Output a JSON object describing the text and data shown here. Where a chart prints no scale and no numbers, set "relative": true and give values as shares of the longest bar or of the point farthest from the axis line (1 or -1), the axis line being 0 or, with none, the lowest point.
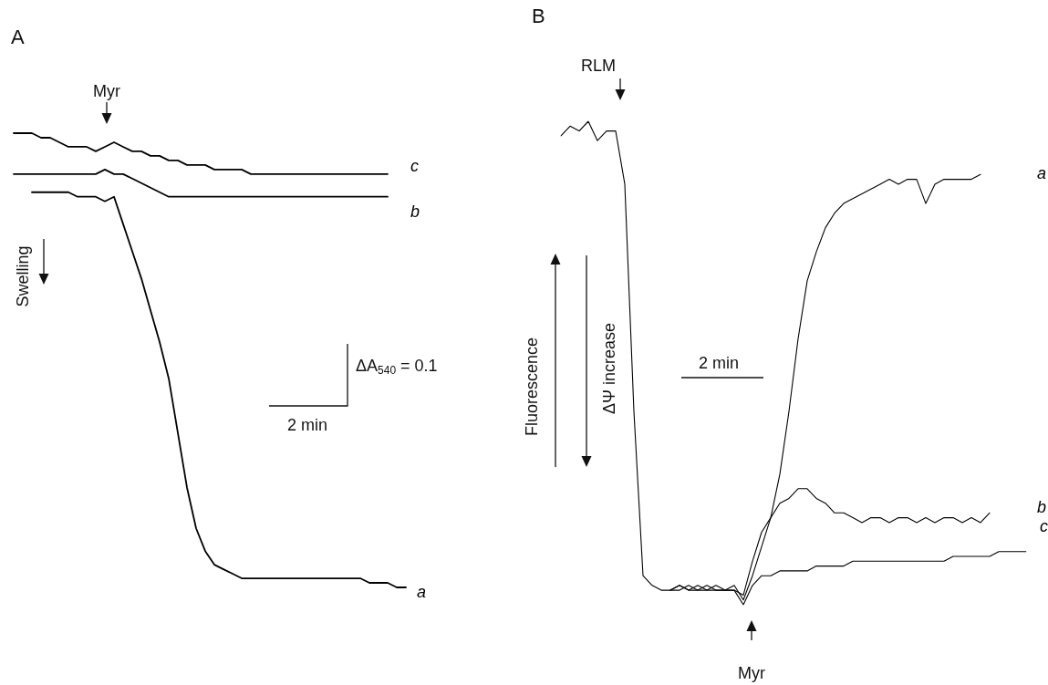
{
  "chart_data": [
    {
      "type": "line",
      "title": "A",
      "relative": true,
      "categories": [
        null,
        null,
        null,
        null,
        null,
        null,
        null,
        null,
        null,
        null,
        null,
        null,
        null,
        null,
        null,
        null,
        null,
        null,
        null,
        null,
        null,
        null,
        null,
        null,
        null,
        null,
        null,
        null,
        null,
        null,
        null,
        null,
        null,
        null,
        null,
        null,
        null,
        null,
        null,
        null,
        null,
        null,
        null,
        null
      ],
      "series": [
        {
          "name": "a",
          "color": "#000000",
          "values": [
            null,
            null,
            0.87,
            0.87,
            0.87,
            0.87,
            0.87,
            0.86,
            0.86,
            0.86,
            0.85,
            0.86,
            0.8,
            0.74,
            0.68,
            0.61,
            0.54,
            0.46,
            0.34,
            0.22,
            0.13,
            0.08,
            0.05,
            0.04,
            0.03,
            0.02,
            0.02,
            0.02,
            0.02,
            0.02,
            0.02,
            0.02,
            0.02,
            0.02,
            0.02,
            0.02,
            0.02,
            0.02,
            0.02,
            0.01,
            0.01,
            0.01,
            0.0,
            0.0
          ]
        },
        {
          "name": "b",
          "color": "#000000",
          "values": [
            0.91,
            0.91,
            0.91,
            0.91,
            0.91,
            0.91,
            0.91,
            0.91,
            0.91,
            0.91,
            0.92,
            0.91,
            0.91,
            0.9,
            0.89,
            0.88,
            0.87,
            0.86,
            0.86,
            0.86,
            0.86,
            0.86,
            0.86,
            0.86,
            0.86,
            0.86,
            0.86,
            0.86,
            0.86,
            0.86,
            0.86,
            0.86,
            0.86,
            0.86,
            0.86,
            0.86,
            0.86,
            0.86,
            0.86,
            0.86,
            0.86,
            0.86,
            null,
            null
          ]
        },
        {
          "name": "c",
          "color": "#000000",
          "values": [
            1.0,
            1.0,
            1.0,
            0.99,
            0.99,
            0.98,
            0.97,
            0.97,
            0.97,
            0.96,
            0.97,
            0.98,
            0.97,
            0.96,
            0.96,
            0.95,
            0.95,
            0.94,
            0.94,
            0.93,
            0.93,
            0.93,
            0.92,
            0.92,
            0.92,
            0.92,
            0.91,
            0.91,
            0.91,
            0.91,
            0.91,
            0.91,
            0.91,
            0.91,
            0.91,
            0.91,
            0.91,
            0.91,
            0.91,
            0.91,
            0.91,
            0.91,
            null,
            null
          ]
        }
      ],
      "annotations": [
        "Myr",
        "Swelling",
        "ΔA$_{540}$ = 0.1",
        "2 min"
      ]
    },
    {
      "type": "line",
      "title": "B",
      "relative": true,
      "categories": [
        null,
        null,
        null,
        null,
        null,
        null,
        null,
        null,
        null,
        null,
        null,
        null,
        null,
        null,
        null,
        null,
        null,
        null,
        null,
        null,
        null,
        null,
        null,
        null,
        null,
        null,
        null,
        null,
        null,
        null,
        null,
        null,
        null,
        null,
        null,
        null,
        null,
        null,
        null,
        null,
        null,
        null,
        null,
        null,
        null,
        null,
        null,
        null,
        null,
        null,
        null,
        null
      ],
      "series": [
        {
          "name": "a",
          "color": "#000000",
          "values": [
            0.97,
            0.99,
            0.98,
            1.0,
            0.96,
            0.98,
            0.98,
            0.87,
            0.4,
            0.06,
            0.04,
            0.03,
            0.03,
            0.04,
            0.03,
            0.03,
            0.04,
            0.03,
            0.03,
            0.04,
            0.01,
            0.06,
            0.12,
            0.18,
            0.27,
            0.4,
            0.55,
            0.67,
            0.73,
            0.78,
            0.81,
            0.83,
            0.84,
            0.85,
            0.86,
            0.87,
            0.88,
            0.87,
            0.88,
            0.88,
            0.83,
            0.87,
            0.88,
            0.88,
            0.88,
            0.88,
            0.89,
            null,
            null,
            null,
            null,
            null
          ]
        },
        {
          "name": "b",
          "color": "#000000",
          "values": [
            null,
            null,
            null,
            null,
            null,
            null,
            null,
            null,
            null,
            null,
            null,
            null,
            0.03,
            0.03,
            0.04,
            0.03,
            0.03,
            0.04,
            0.03,
            0.03,
            0.02,
            0.09,
            0.15,
            0.18,
            0.21,
            0.22,
            0.24,
            0.24,
            0.22,
            0.21,
            0.19,
            0.19,
            0.18,
            0.17,
            0.18,
            0.18,
            0.17,
            0.18,
            0.18,
            0.17,
            0.18,
            0.17,
            0.18,
            0.18,
            0.17,
            0.18,
            0.17,
            0.19,
            null,
            null,
            null,
            null
          ]
        },
        {
          "name": "c",
          "color": "#000000",
          "values": [
            null,
            null,
            null,
            null,
            null,
            null,
            null,
            null,
            null,
            null,
            null,
            null,
            0.03,
            0.04,
            0.03,
            0.04,
            0.03,
            0.03,
            0.03,
            0.03,
            0.0,
            0.04,
            0.06,
            0.06,
            0.07,
            0.07,
            0.07,
            0.07,
            0.08,
            0.08,
            0.08,
            0.08,
            0.09,
            0.09,
            0.09,
            0.09,
            0.09,
            0.09,
            0.09,
            0.09,
            0.09,
            0.09,
            0.09,
            0.1,
            0.1,
            0.1,
            0.1,
            0.1,
            0.11,
            0.11,
            0.11,
            0.11
          ]
        }
      ],
      "annotations": [
        "RLM",
        "Fluorescence",
        "ΔΨ increase",
        "2 min",
        "Myr"
      ]
    }
  ]
}
